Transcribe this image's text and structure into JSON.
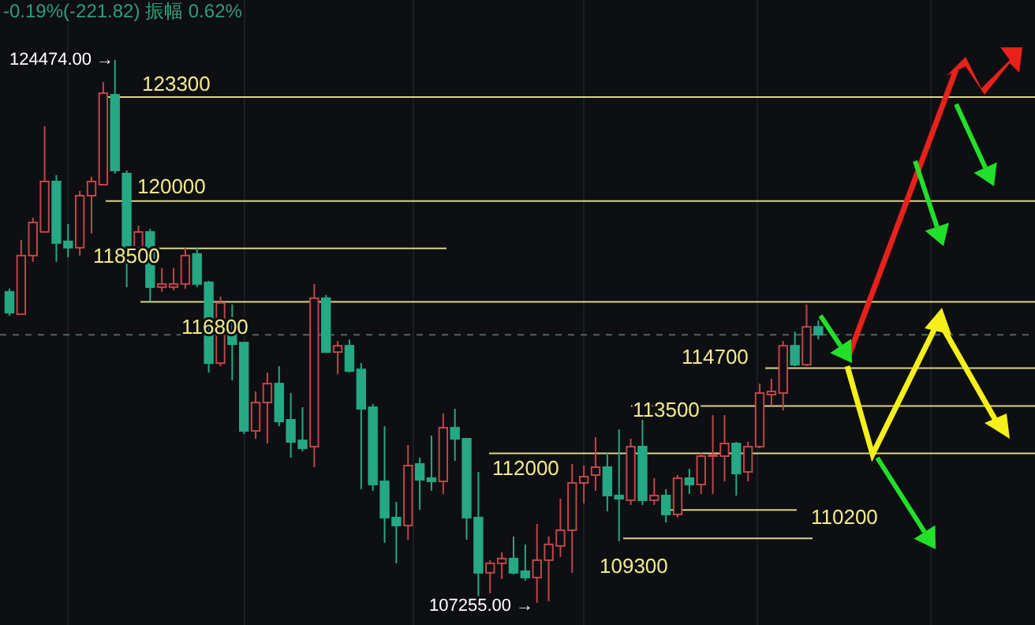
{
  "chart_data": {
    "type": "candlestick",
    "categories": [
      null,
      null,
      null,
      null,
      null,
      null,
      null,
      null,
      null,
      null,
      null,
      null,
      null,
      null,
      null,
      null,
      null,
      null,
      null,
      null,
      null,
      null,
      null,
      null,
      null,
      null,
      null,
      null,
      null,
      null,
      null,
      null,
      null,
      null,
      null,
      null,
      null,
      null,
      null,
      null,
      null,
      null,
      null,
      null,
      null,
      null,
      null,
      null,
      null,
      null,
      null,
      null,
      null,
      null,
      null,
      null,
      null,
      null,
      null,
      null,
      null,
      null,
      null,
      null,
      null,
      null,
      null,
      null,
      null,
      null
    ],
    "ohlc": [
      [
        117120,
        117220,
        116360,
        116460
      ],
      [
        116410,
        118770,
        116410,
        118270
      ],
      [
        118270,
        119470,
        118070,
        119320
      ],
      [
        119020,
        122370,
        119020,
        120620
      ],
      [
        120620,
        120820,
        118070,
        118670
      ],
      [
        118720,
        119270,
        118220,
        118520
      ],
      [
        118520,
        120320,
        118270,
        120170
      ],
      [
        120170,
        120770,
        118970,
        120620
      ],
      [
        120520,
        123770,
        120520,
        123420
      ],
      [
        123370,
        124474,
        120870,
        120970
      ],
      [
        120870,
        120970,
        117270,
        118520
      ],
      [
        118520,
        119220,
        118370,
        119020
      ],
      [
        119020,
        119120,
        116820,
        117270
      ],
      [
        117270,
        117870,
        117120,
        117370
      ],
      [
        117270,
        117870,
        117170,
        117370
      ],
      [
        117370,
        118520,
        117220,
        118270
      ],
      [
        118320,
        118520,
        117270,
        117370
      ],
      [
        117420,
        117470,
        114560,
        114860
      ],
      [
        114860,
        116970,
        114760,
        116770
      ],
      [
        115760,
        116720,
        114310,
        115460
      ],
      [
        115510,
        115510,
        112610,
        112710
      ],
      [
        112710,
        113960,
        112460,
        113610
      ],
      [
        113610,
        114560,
        112310,
        114210
      ],
      [
        114210,
        114760,
        112860,
        113010
      ],
      [
        113060,
        113910,
        111860,
        112360
      ],
      [
        112410,
        113460,
        112060,
        112160
      ],
      [
        112210,
        117370,
        111560,
        116920
      ],
      [
        116920,
        117020,
        115210,
        115210
      ],
      [
        115210,
        115560,
        114510,
        115410
      ],
      [
        115410,
        115610,
        114560,
        114610
      ],
      [
        114660,
        114860,
        110860,
        113410
      ],
      [
        113460,
        113560,
        110810,
        111010
      ],
      [
        111110,
        112860,
        109160,
        109960
      ],
      [
        109960,
        110460,
        108510,
        109710
      ],
      [
        109710,
        112260,
        109260,
        111610
      ],
      [
        111660,
        111860,
        110210,
        111160
      ],
      [
        111210,
        112560,
        110810,
        111110
      ],
      [
        111110,
        113260,
        110710,
        112810
      ],
      [
        112810,
        113410,
        111760,
        112460
      ],
      [
        112460,
        112460,
        109260,
        109960
      ],
      [
        109960,
        111410,
        107460,
        108210
      ],
      [
        108210,
        108610,
        107560,
        108510
      ],
      [
        108510,
        108860,
        108010,
        108660
      ],
      [
        108660,
        109360,
        108160,
        108210
      ],
      [
        108260,
        109110,
        107960,
        108060
      ],
      [
        108060,
        109760,
        107255,
        108610
      ],
      [
        108610,
        109360,
        107310,
        109110
      ],
      [
        109060,
        110560,
        108710,
        109560
      ],
      [
        109560,
        111660,
        108210,
        111060
      ],
      [
        111060,
        111610,
        110410,
        111260
      ],
      [
        111310,
        112510,
        110810,
        111560
      ],
      [
        111560,
        112010,
        110160,
        110660
      ],
      [
        110660,
        112760,
        109210,
        110560
      ],
      [
        110510,
        112460,
        110360,
        112210
      ],
      [
        112210,
        113060,
        110360,
        110510
      ],
      [
        110510,
        111210,
        110360,
        110660
      ],
      [
        110660,
        110860,
        109810,
        110060
      ],
      [
        110060,
        111310,
        109960,
        111210
      ],
      [
        111210,
        111510,
        110710,
        111010
      ],
      [
        111010,
        112010,
        110710,
        111910
      ],
      [
        111910,
        113210,
        110710,
        111960
      ],
      [
        111910,
        113210,
        111110,
        112310
      ],
      [
        112310,
        112360,
        110660,
        111360
      ],
      [
        111410,
        112360,
        111110,
        112210
      ],
      [
        112210,
        114210,
        112160,
        113910
      ],
      [
        113860,
        114360,
        113510,
        113960
      ],
      [
        113910,
        115560,
        113360,
        115410
      ],
      [
        115410,
        115860,
        114760,
        114810
      ],
      [
        114810,
        116720,
        114760,
        116010
      ],
      [
        116010,
        116210,
        115610,
        115760
      ]
    ],
    "colors": [
      "#26a884",
      "#c0464b",
      "#c0464b",
      "#c0464b",
      "#26a884",
      "#26a884",
      "#c0464b",
      "#c0464b",
      "#c0464b",
      "#26a884",
      "#26a884",
      "#c0464b",
      "#26a884",
      "#c0464b",
      "#c0464b",
      "#c0464b",
      "#26a884",
      "#26a884",
      "#c0464b",
      "#26a884",
      "#26a884",
      "#c0464b",
      "#c0464b",
      "#26a884",
      "#26a884",
      "#26a884",
      "#c0464b",
      "#26a884",
      "#c0464b",
      "#26a884",
      "#26a884",
      "#26a884",
      "#26a884",
      "#26a884",
      "#c0464b",
      "#26a884",
      "#26a884",
      "#c0464b",
      "#26a884",
      "#26a884",
      "#26a884",
      "#c0464b",
      "#c0464b",
      "#26a884",
      "#26a884",
      "#c0464b",
      "#c0464b",
      "#c0464b",
      "#c0464b",
      "#c0464b",
      "#c0464b",
      "#26a884",
      "#26a884",
      "#c0464b",
      "#26a884",
      "#c0464b",
      "#26a884",
      "#c0464b",
      "#26a884",
      "#c0464b",
      "#c0464b",
      "#c0464b",
      "#26a884",
      "#c0464b",
      "#c0464b",
      "#c0464b",
      "#c0464b",
      "#26a884",
      "#c0464b",
      "#26a884"
    ],
    "ref_lines": [
      {
        "axis": "y",
        "value": 123300,
        "label": "123300",
        "color": "#d9d48a"
      },
      {
        "axis": "y",
        "value": 120000,
        "label": "120000",
        "color": "#d9d48a"
      },
      {
        "axis": "y",
        "value": 118500,
        "label": "118500",
        "color": "#d9d48a"
      },
      {
        "axis": "y",
        "value": 116800,
        "label": "116800",
        "color": "#d9d48a"
      },
      {
        "axis": "y",
        "value": 114700,
        "label": "114700",
        "color": "#d9d48a"
      },
      {
        "axis": "y",
        "value": 113500,
        "label": "113500",
        "color": "#d9d48a"
      },
      {
        "axis": "y",
        "value": 112000,
        "label": "112000",
        "color": "#d9d48a"
      },
      {
        "axis": "y",
        "value": 110200,
        "label": "110200",
        "color": "#d9d48a"
      },
      {
        "axis": "y",
        "value": 109300,
        "label": "109300",
        "color": "#d9d48a"
      },
      {
        "axis": "y",
        "value": 115760,
        "color": "#4f6466",
        "line_style": "dashed"
      }
    ],
    "annotations": [
      "-0.19%(-221.82) 振幅 0.62%",
      "124474.00 →",
      "107255.00 →"
    ],
    "grid": "x"
  }
}
